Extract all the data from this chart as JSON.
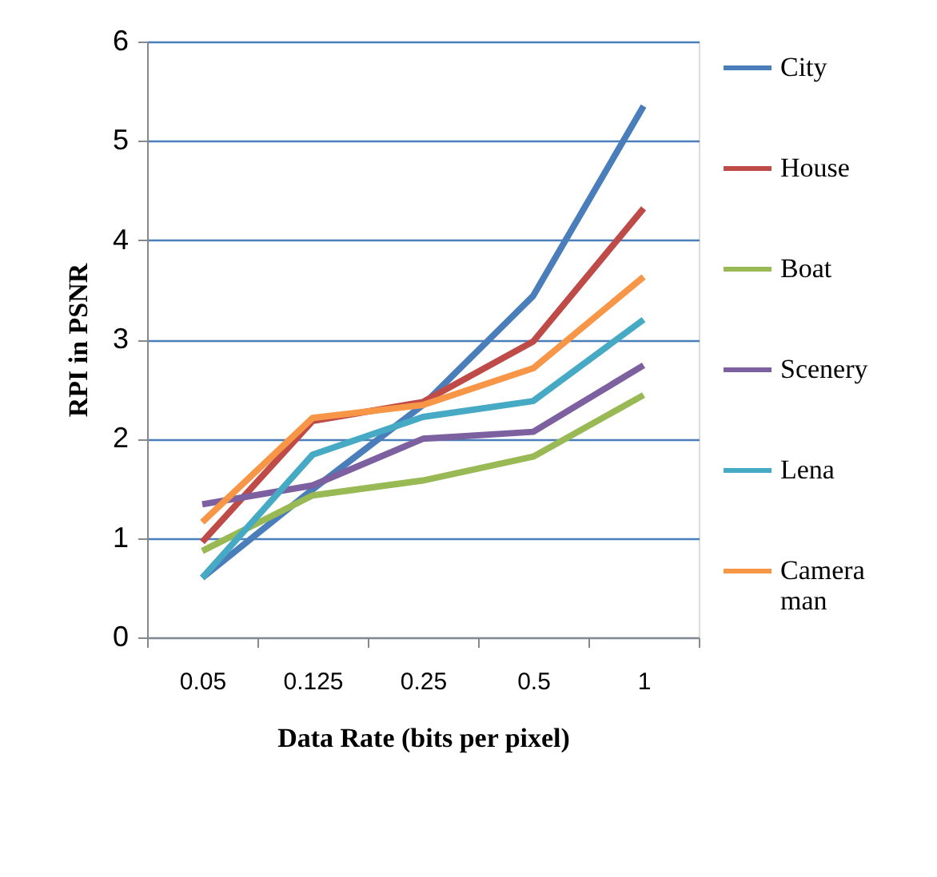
{
  "chart_data": {
    "type": "line",
    "xlabel": "Data Rate (bits per pixel)",
    "ylabel": "RPI in PSNR",
    "categories": [
      "0.05",
      "0.125",
      "0.25",
      "0.5",
      "1"
    ],
    "series": [
      {
        "name": "City",
        "color": "#4a7ebb",
        "values": [
          0.6,
          1.49,
          2.34,
          3.44,
          5.35
        ]
      },
      {
        "name": "House",
        "color": "#be4b48",
        "values": [
          0.96,
          2.18,
          2.37,
          2.98,
          4.32
        ]
      },
      {
        "name": "Boat",
        "color": "#98b954",
        "values": [
          0.87,
          1.43,
          1.58,
          1.82,
          2.44
        ]
      },
      {
        "name": "Scenery",
        "color": "#7d60a0",
        "values": [
          1.34,
          1.53,
          2.0,
          2.07,
          2.74
        ]
      },
      {
        "name": "Lena",
        "color": "#46aac5",
        "values": [
          0.6,
          1.84,
          2.22,
          2.38,
          3.2
        ]
      },
      {
        "name": "Camera man",
        "color": "#f79646",
        "values": [
          1.16,
          2.21,
          2.34,
          2.71,
          3.63
        ]
      }
    ],
    "ylim": [
      0,
      6
    ],
    "yticks": [
      0,
      1,
      2,
      3,
      4,
      5,
      6
    ],
    "grid": "y",
    "legend": "right",
    "marker": "none",
    "line_style": "solid"
  }
}
